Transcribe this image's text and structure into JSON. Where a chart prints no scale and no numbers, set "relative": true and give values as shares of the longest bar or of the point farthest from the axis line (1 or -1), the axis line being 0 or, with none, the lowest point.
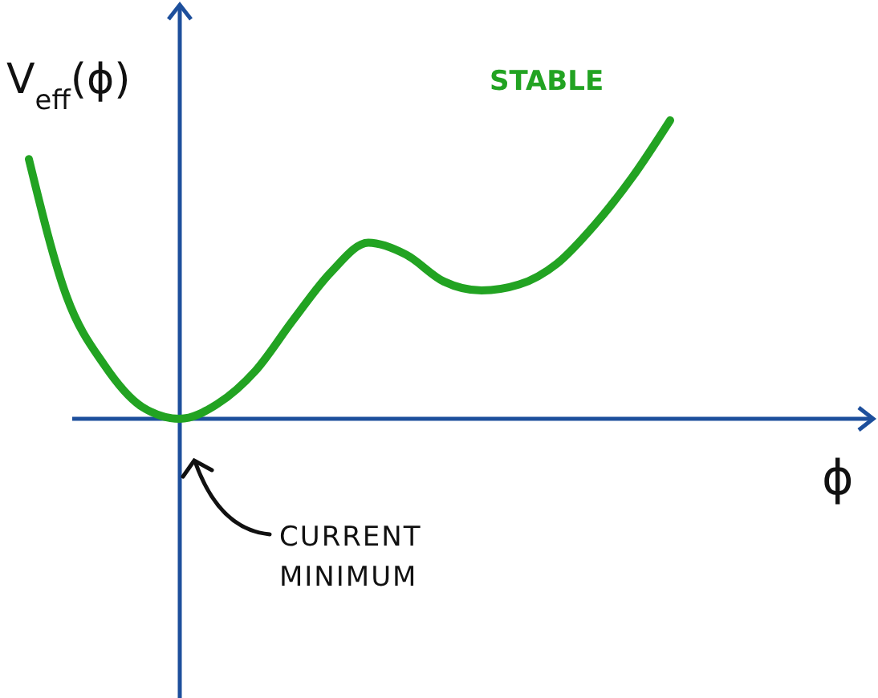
{
  "chart_data": {
    "type": "line",
    "relative": true,
    "xlabel": "ϕ",
    "ylabel": "V$_{eff}$(ϕ)",
    "categories": [
      null,
      null,
      null,
      null,
      null,
      null,
      null,
      null,
      null,
      null,
      null,
      null,
      null,
      null,
      null,
      null,
      null,
      null
    ],
    "series": [
      {
        "name": "STABLE",
        "color": "#22a322",
        "values": [
          0.87,
          0.41,
          0.18,
          0.04,
          0,
          0.05,
          0.16,
          0.33,
          0.49,
          0.59,
          0.55,
          0.46,
          0.43,
          0.45,
          0.52,
          0.65,
          0.81,
          1
        ]
      }
    ],
    "annotations": [
      "CURRENT MINIMUM"
    ],
    "legend": false,
    "grid": false
  }
}
